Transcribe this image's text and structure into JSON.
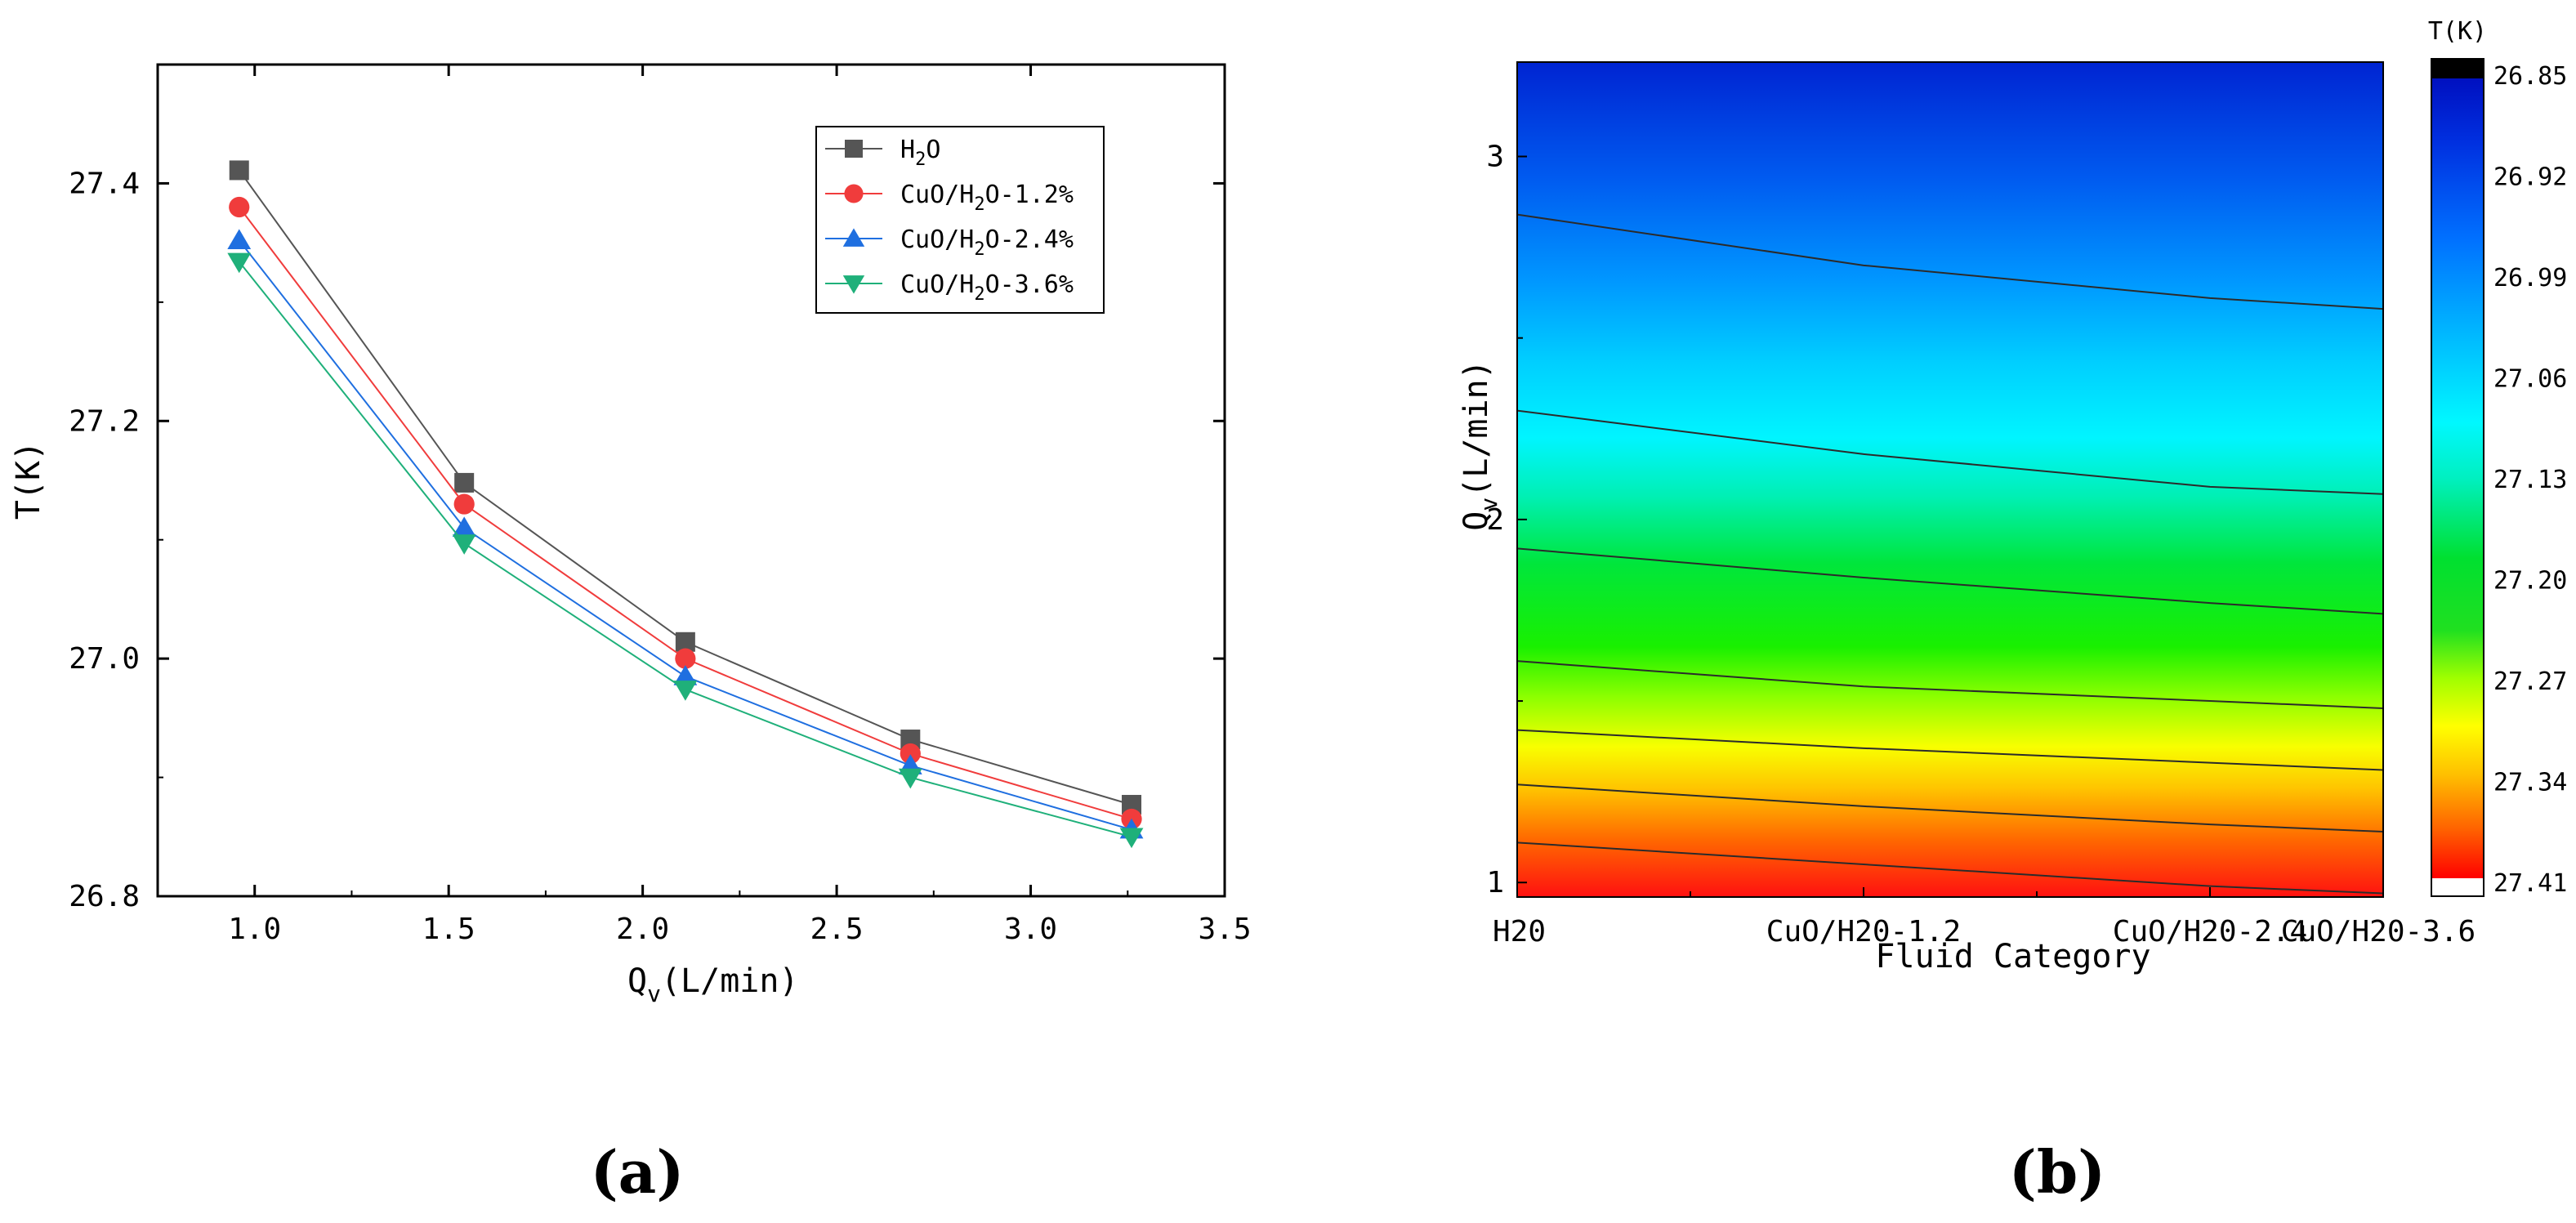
{
  "chart_data": [
    {
      "type": "line",
      "panel_label": "(a)",
      "xlabel": "Q",
      "xlabel_sub": "v",
      "xlabel_unit": "(L/min)",
      "ylabel": "T(K)",
      "xlim": [
        0.75,
        3.5
      ],
      "ylim": [
        26.8,
        27.5
      ],
      "xticks": [
        1.0,
        1.5,
        2.0,
        2.5,
        3.0,
        3.5
      ],
      "xtick_labels": [
        "1.0",
        "1.5",
        "2.0",
        "2.5",
        "3.0",
        "3.5"
      ],
      "yticks": [
        26.8,
        27.0,
        27.2,
        27.4
      ],
      "ytick_labels": [
        "26.8",
        "27.0",
        "27.2",
        "27.4"
      ],
      "x": [
        0.96,
        1.54,
        2.11,
        2.69,
        3.26
      ],
      "legend_position": "top-right",
      "series": [
        {
          "name": "H2O",
          "label_parts": [
            "H",
            "2",
            "O"
          ],
          "marker": "square",
          "color": "#555555",
          "values": [
            27.411,
            27.148,
            27.014,
            26.932,
            26.877
          ]
        },
        {
          "name": "CuO/H2O-1.2%",
          "label_parts": [
            "CuO/H",
            "2",
            "O-1.2%"
          ],
          "marker": "circle",
          "color": "#f03c3c",
          "values": [
            27.38,
            27.13,
            27.0,
            26.92,
            26.865
          ]
        },
        {
          "name": "CuO/H2O-2.4%",
          "label_parts": [
            "CuO/H",
            "2",
            "O-2.4%"
          ],
          "marker": "triangle-up",
          "color": "#1f6fe0",
          "values": [
            27.352,
            27.11,
            26.985,
            26.91,
            26.856
          ]
        },
        {
          "name": "CuO/H2O-3.6%",
          "label_parts": [
            "CuO/H",
            "2",
            "O-3.6%"
          ],
          "marker": "triangle-down",
          "color": "#1fb07a",
          "values": [
            27.334,
            27.097,
            26.974,
            26.9,
            26.85
          ]
        }
      ]
    },
    {
      "type": "heatmap",
      "subtype": "contour",
      "panel_label": "(b)",
      "xlabel": "Fluid Category",
      "ylabel": "Q",
      "ylabel_sub": "v",
      "ylabel_unit": "(L/min)",
      "xlim": [
        0,
        3
      ],
      "ylim": [
        0.96,
        3.26
      ],
      "categories": [
        "H20",
        "CuO/H20-1.2",
        "CuO/H20-2.4",
        "CuO/H20-3.6"
      ],
      "category_positions": [
        0,
        1.2,
        2.4,
        3.6
      ],
      "yticks": [
        1,
        2,
        3
      ],
      "ytick_labels": [
        "1",
        "2",
        "3"
      ],
      "colorbar_title": "T(K)",
      "colorbar_ticks": [
        "26.85",
        "26.92",
        "26.99",
        "27.06",
        "27.13",
        "27.20",
        "27.27",
        "27.34",
        "27.41"
      ],
      "colorbar_range": [
        26.82,
        27.42
      ],
      "contour_lines": [
        {
          "level": 26.88,
          "points": [
            [
              0,
              2.84
            ],
            [
              1.2,
              2.7
            ],
            [
              2.4,
              2.61
            ],
            [
              3.6,
              2.55
            ]
          ]
        },
        {
          "level": 26.99,
          "points": [
            [
              0,
              2.3
            ],
            [
              1.2,
              2.18
            ],
            [
              2.4,
              2.09
            ],
            [
              3.6,
              2.05
            ]
          ]
        },
        {
          "level": 27.1,
          "points": [
            [
              0,
              1.92
            ],
            [
              1.2,
              1.84
            ],
            [
              2.4,
              1.77
            ],
            [
              3.6,
              1.71
            ]
          ]
        },
        {
          "level": 27.2,
          "points": [
            [
              0,
              1.61
            ],
            [
              1.2,
              1.54
            ],
            [
              2.4,
              1.5
            ],
            [
              3.6,
              1.46
            ]
          ]
        },
        {
          "level": 27.27,
          "points": [
            [
              0,
              1.42
            ],
            [
              1.2,
              1.37
            ],
            [
              2.4,
              1.33
            ],
            [
              3.6,
              1.29
            ]
          ]
        },
        {
          "level": 27.34,
          "points": [
            [
              0,
              1.27
            ],
            [
              1.2,
              1.21
            ],
            [
              2.4,
              1.16
            ],
            [
              3.6,
              1.12
            ]
          ]
        },
        {
          "level": 27.41,
          "points": [
            [
              0,
              1.11
            ],
            [
              1.2,
              1.05
            ],
            [
              2.4,
              0.99
            ],
            [
              3.6,
              0.95
            ]
          ]
        }
      ]
    }
  ]
}
